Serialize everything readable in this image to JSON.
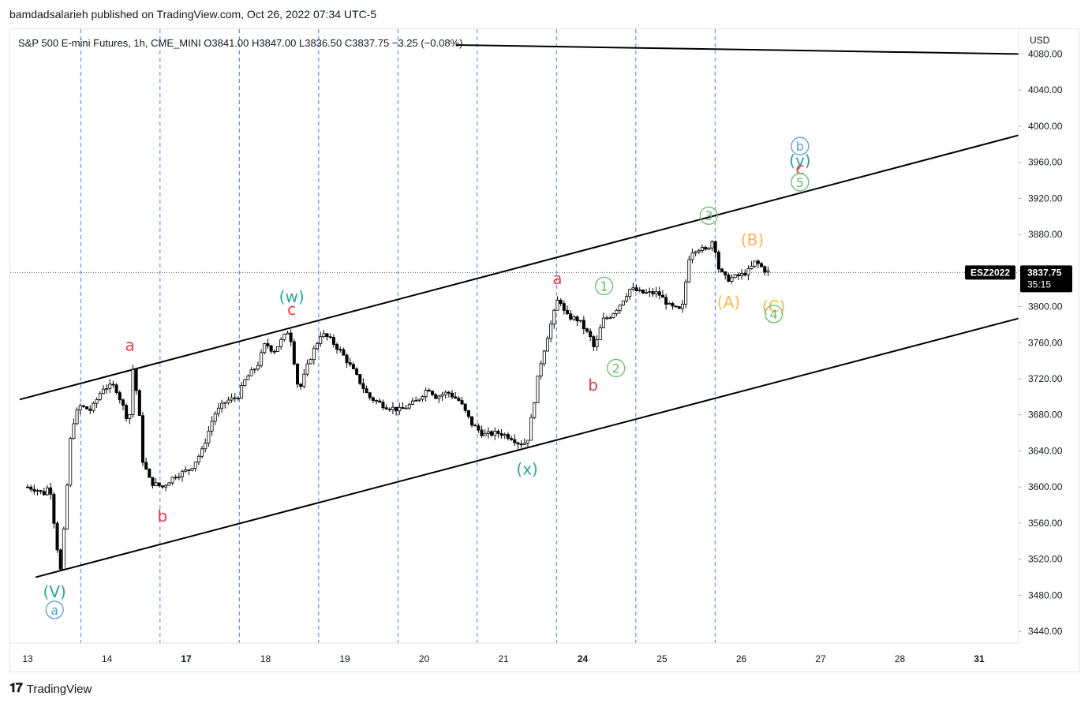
{
  "header": {
    "publisher": "bamdadsalarieh published on TradingView.com, Oct 26, 2022 07:34 UTC-5",
    "legend": "S&P 500 E-mini Futures, 1h, CME_MINI  O3841.00  H3847.00  L3836.50  C3837.75  −3.25 (−0.08%)"
  },
  "footer": {
    "brand": "TradingView",
    "logo_icon": "tradingview-logo-icon"
  },
  "chart_data": {
    "type": "candlestick",
    "currency": "USD",
    "symbol_badge": "ESZ2022",
    "last_price": "3837.75",
    "countdown": "35:15",
    "ylim": [
      3420,
      4090
    ],
    "y_ticks": [
      "4080.00",
      "4040.00",
      "4000.00",
      "3960.00",
      "3920.00",
      "3880.00",
      "3840.00",
      "3800.00",
      "3760.00",
      "3720.00",
      "3680.00",
      "3640.00",
      "3600.00",
      "3560.00",
      "3520.00",
      "3480.00",
      "3440.00"
    ],
    "x_ticks": [
      {
        "label": "13",
        "bold": false
      },
      {
        "label": "14",
        "bold": false
      },
      {
        "label": "17",
        "bold": true
      },
      {
        "label": "18",
        "bold": false
      },
      {
        "label": "19",
        "bold": false
      },
      {
        "label": "20",
        "bold": false
      },
      {
        "label": "21",
        "bold": false
      },
      {
        "label": "24",
        "bold": true
      },
      {
        "label": "25",
        "bold": false
      },
      {
        "label": "26",
        "bold": false
      },
      {
        "label": "27",
        "bold": false
      },
      {
        "label": "28",
        "bold": false
      },
      {
        "label": "31",
        "bold": true
      }
    ],
    "price_path": [
      [
        0,
        3600
      ],
      [
        0.12,
        3597
      ],
      [
        0.2,
        3592
      ],
      [
        0.28,
        3603
      ],
      [
        0.36,
        3540
      ],
      [
        0.42,
        3505
      ],
      [
        0.48,
        3580
      ],
      [
        0.55,
        3665
      ],
      [
        0.65,
        3690
      ],
      [
        0.8,
        3685
      ],
      [
        0.95,
        3710
      ],
      [
        1.1,
        3712
      ],
      [
        1.2,
        3690
      ],
      [
        1.28,
        3670
      ],
      [
        1.32,
        3735
      ],
      [
        1.4,
        3690
      ],
      [
        1.45,
        3630
      ],
      [
        1.55,
        3605
      ],
      [
        1.7,
        3600
      ],
      [
        1.85,
        3612
      ],
      [
        2.05,
        3620
      ],
      [
        2.2,
        3640
      ],
      [
        2.35,
        3680
      ],
      [
        2.5,
        3695
      ],
      [
        2.65,
        3700
      ],
      [
        2.75,
        3720
      ],
      [
        2.9,
        3735
      ],
      [
        3.0,
        3760
      ],
      [
        3.1,
        3750
      ],
      [
        3.3,
        3775
      ],
      [
        3.42,
        3705
      ],
      [
        3.55,
        3740
      ],
      [
        3.7,
        3770
      ],
      [
        3.8,
        3765
      ],
      [
        3.95,
        3750
      ],
      [
        4.1,
        3730
      ],
      [
        4.3,
        3700
      ],
      [
        4.5,
        3690
      ],
      [
        4.7,
        3685
      ],
      [
        4.9,
        3695
      ],
      [
        5.05,
        3710
      ],
      [
        5.15,
        3700
      ],
      [
        5.3,
        3705
      ],
      [
        5.45,
        3695
      ],
      [
        5.6,
        3670
      ],
      [
        5.75,
        3658
      ],
      [
        5.95,
        3660
      ],
      [
        6.1,
        3655
      ],
      [
        6.2,
        3648
      ],
      [
        6.3,
        3650
      ],
      [
        6.38,
        3690
      ],
      [
        6.45,
        3730
      ],
      [
        6.55,
        3765
      ],
      [
        6.7,
        3812
      ],
      [
        6.78,
        3790
      ],
      [
        6.95,
        3785
      ],
      [
        7.1,
        3765
      ],
      [
        7.15,
        3752
      ],
      [
        7.25,
        3785
      ],
      [
        7.35,
        3790
      ],
      [
        7.45,
        3800
      ],
      [
        7.6,
        3820
      ],
      [
        7.75,
        3815
      ],
      [
        7.95,
        3815
      ],
      [
        8.1,
        3800
      ],
      [
        8.25,
        3795
      ],
      [
        8.35,
        3860
      ],
      [
        8.45,
        3865
      ],
      [
        8.55,
        3862
      ],
      [
        8.65,
        3875
      ],
      [
        8.72,
        3840
      ],
      [
        8.82,
        3830
      ],
      [
        9.0,
        3835
      ],
      [
        9.1,
        3840
      ],
      [
        9.18,
        3850
      ],
      [
        9.3,
        3840
      ],
      [
        9.35,
        3838
      ]
    ],
    "channel_lines": [
      {
        "name": "upper",
        "from": [
          -0.1,
          3697
        ],
        "to": [
          12.5,
          3990
        ]
      },
      {
        "name": "lower",
        "from": [
          0.1,
          3500
        ],
        "to": [
          12.5,
          3787
        ]
      },
      {
        "name": "top",
        "from": [
          5.4,
          4090
        ],
        "to": [
          12.5,
          4080
        ]
      }
    ],
    "vertical_lines_x": [
      0.67,
      1.67,
      2.67,
      3.67,
      4.67,
      5.67,
      6.67,
      7.67,
      8.67
    ],
    "wave_labels": [
      {
        "text": "(V)",
        "x": 0.34,
        "y": 3484,
        "color": "#26a69a",
        "circled": false,
        "size": 20
      },
      {
        "text": "a",
        "x": 0.34,
        "y": 3463,
        "color": "#5b9bd5",
        "circled": true,
        "size": 20
      },
      {
        "text": "a",
        "x": 1.29,
        "y": 3757,
        "color": "#f23645",
        "circled": false,
        "size": 20
      },
      {
        "text": "b",
        "x": 1.7,
        "y": 3568,
        "color": "#f23645",
        "circled": false,
        "size": 20
      },
      {
        "text": "(w)",
        "x": 3.33,
        "y": 3811,
        "color": "#26a69a",
        "circled": false,
        "size": 20
      },
      {
        "text": "c",
        "x": 3.33,
        "y": 3797,
        "color": "#f23645",
        "circled": false,
        "size": 20
      },
      {
        "text": "(x)",
        "x": 6.3,
        "y": 3620,
        "color": "#26a69a",
        "circled": false,
        "size": 20
      },
      {
        "text": "a",
        "x": 6.68,
        "y": 3831,
        "color": "#f23645",
        "circled": false,
        "size": 20
      },
      {
        "text": "b",
        "x": 7.13,
        "y": 3713,
        "color": "#f23645",
        "circled": false,
        "size": 20
      },
      {
        "text": "1",
        "x": 7.27,
        "y": 3822,
        "color": "#66bb6a",
        "circled": true,
        "size": 20
      },
      {
        "text": "2",
        "x": 7.42,
        "y": 3731,
        "color": "#66bb6a",
        "circled": true,
        "size": 20
      },
      {
        "text": "3",
        "x": 8.59,
        "y": 3900,
        "color": "#66bb6a",
        "circled": true,
        "size": 20
      },
      {
        "text": "(A)",
        "x": 8.84,
        "y": 3805,
        "color": "#ffb74d",
        "circled": false,
        "size": 20
      },
      {
        "text": "(B)",
        "x": 9.14,
        "y": 3874,
        "color": "#ffb74d",
        "circled": false,
        "size": 20
      },
      {
        "text": "(C)",
        "x": 9.41,
        "y": 3800,
        "color": "#ffb74d",
        "circled": false,
        "size": 20
      },
      {
        "text": "4",
        "x": 9.41,
        "y": 3791,
        "color": "#66bb6a",
        "circled": true,
        "size": 20
      },
      {
        "text": "b",
        "x": 9.74,
        "y": 3977,
        "color": "#5b9bd5",
        "circled": true,
        "size": 20
      },
      {
        "text": "(y)",
        "x": 9.74,
        "y": 3962,
        "color": "#26a69a",
        "circled": false,
        "size": 20
      },
      {
        "text": "c",
        "x": 9.74,
        "y": 3953,
        "color": "#f23645",
        "circled": false,
        "size": 20
      },
      {
        "text": "5",
        "x": 9.74,
        "y": 3937,
        "color": "#66bb6a",
        "circled": true,
        "size": 20
      }
    ]
  },
  "colors": {
    "grid_vline": "#2962ff",
    "channel": "#000000",
    "candle": "#000000",
    "axis_text": "#131722",
    "badge_bg": "#000000",
    "badge_text": "#ffffff"
  }
}
